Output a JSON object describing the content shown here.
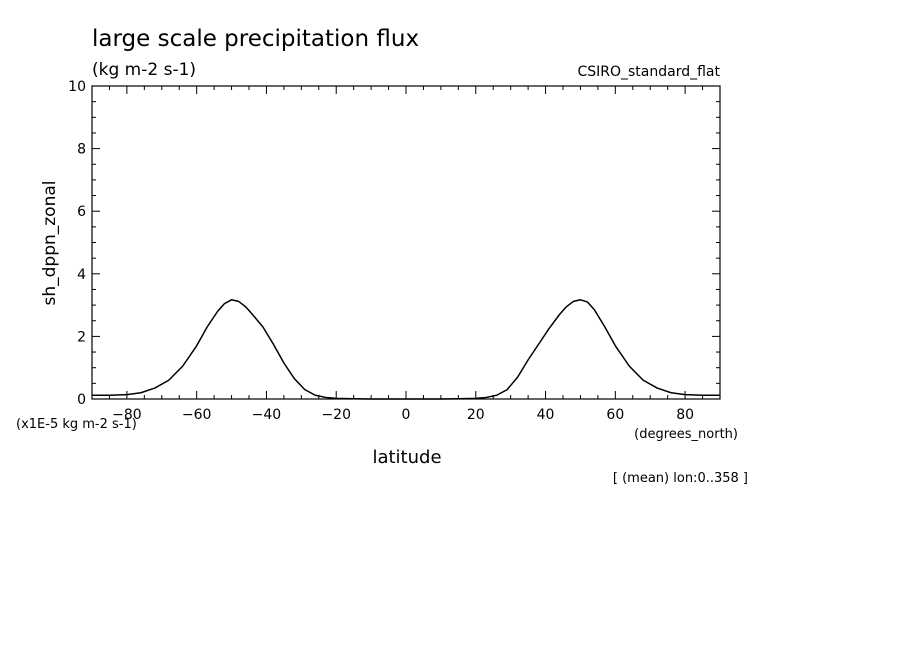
{
  "title": "large scale precipitation flux",
  "units": "(kg m-2 s-1)",
  "dataset": "CSIRO_standard_flat",
  "ylabel": "sh_dppn_zonal",
  "yscale_note": "(x1E-5 kg m-2 s-1)",
  "xlabel": "latitude",
  "xunits": "(degrees_north)",
  "footnote": "[ (mean) lon:0..358 ]",
  "chart_data": {
    "type": "line",
    "xlim": [
      -90,
      90
    ],
    "ylim": [
      0,
      10
    ],
    "xticks": [
      -80,
      -60,
      -40,
      -20,
      0,
      20,
      40,
      60,
      80
    ],
    "yticks": [
      0,
      2,
      4,
      6,
      8,
      10
    ],
    "grid": false,
    "series": [
      {
        "x": [
          -90,
          -85,
          -80,
          -76,
          -72,
          -68,
          -64,
          -60,
          -57,
          -54,
          -52,
          -50,
          -48,
          -46,
          -44,
          -41,
          -38,
          -35,
          -32,
          -29,
          -26,
          -23,
          -20,
          -15,
          -10,
          0,
          10,
          15,
          20,
          23,
          26,
          29,
          32,
          35,
          38,
          41,
          44,
          46,
          48,
          50,
          52,
          54,
          57,
          60,
          64,
          68,
          72,
          76,
          80,
          85,
          90
        ],
        "y": [
          0.12,
          0.12,
          0.14,
          0.2,
          0.35,
          0.6,
          1.05,
          1.7,
          2.3,
          2.8,
          3.05,
          3.17,
          3.12,
          2.95,
          2.7,
          2.3,
          1.75,
          1.15,
          0.65,
          0.3,
          0.12,
          0.05,
          0.02,
          0.01,
          0.0,
          0.0,
          0.0,
          0.01,
          0.02,
          0.05,
          0.12,
          0.3,
          0.7,
          1.25,
          1.75,
          2.25,
          2.7,
          2.95,
          3.12,
          3.17,
          3.1,
          2.85,
          2.3,
          1.7,
          1.05,
          0.6,
          0.35,
          0.2,
          0.14,
          0.12,
          0.12
        ]
      }
    ]
  }
}
